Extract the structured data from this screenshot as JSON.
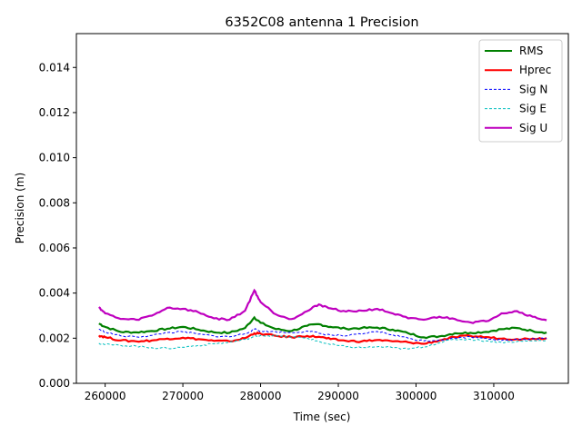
{
  "chart_data": {
    "type": "line",
    "title": "6352C08 antenna 1 Precision",
    "xlabel": "Time (sec)",
    "ylabel": "Precision (m)",
    "xlim": [
      256300,
      319600
    ],
    "ylim": [
      0,
      0.0155
    ],
    "xticks": [
      260000,
      270000,
      280000,
      290000,
      300000,
      310000
    ],
    "xtick_labels": [
      "260000",
      "270000",
      "280000",
      "290000",
      "300000",
      "310000"
    ],
    "yticks": [
      0,
      0.002,
      0.004,
      0.006,
      0.008,
      0.01,
      0.012,
      0.014
    ],
    "ytick_labels": [
      "0.000",
      "0.002",
      "0.004",
      "0.006",
      "0.008",
      "0.010",
      "0.012",
      "0.014"
    ],
    "legend_position": "top-right",
    "grid": false,
    "x": [
      259200,
      260000,
      262000,
      264000,
      266000,
      268000,
      270000,
      272000,
      274000,
      276000,
      278000,
      279200,
      280000,
      282000,
      284000,
      286000,
      287500,
      289000,
      291000,
      293000,
      295000,
      297000,
      299000,
      301000,
      303000,
      305000,
      307000,
      309000,
      311000,
      313000,
      315000,
      316800
    ],
    "series": [
      {
        "name": "RMS",
        "color": "#008000",
        "style": "solid",
        "values": [
          0.00265,
          0.0025,
          0.00228,
          0.00226,
          0.00232,
          0.00242,
          0.0025,
          0.00238,
          0.00226,
          0.00224,
          0.00245,
          0.00292,
          0.00268,
          0.0024,
          0.00232,
          0.00255,
          0.00262,
          0.0025,
          0.00242,
          0.00245,
          0.00247,
          0.00238,
          0.00222,
          0.00204,
          0.00208,
          0.00222,
          0.00224,
          0.00228,
          0.0024,
          0.00245,
          0.00232,
          0.00225
        ]
      },
      {
        "name": "Hprec",
        "color": "#ff0000",
        "style": "solid",
        "values": [
          0.00212,
          0.00205,
          0.0019,
          0.00186,
          0.0019,
          0.00198,
          0.00202,
          0.00196,
          0.00188,
          0.00186,
          0.002,
          0.00222,
          0.0022,
          0.0021,
          0.00204,
          0.0021,
          0.00206,
          0.00196,
          0.00188,
          0.00186,
          0.00192,
          0.00186,
          0.00182,
          0.00175,
          0.0019,
          0.00205,
          0.0021,
          0.00205,
          0.00198,
          0.00196,
          0.00198,
          0.002
        ]
      },
      {
        "name": "Sig N",
        "color": "#0000ff",
        "style": "dashed",
        "values": [
          0.0024,
          0.00228,
          0.0021,
          0.00206,
          0.00212,
          0.00225,
          0.00228,
          0.00218,
          0.0021,
          0.00206,
          0.0022,
          0.0024,
          0.00232,
          0.00228,
          0.00224,
          0.00232,
          0.00222,
          0.00214,
          0.0021,
          0.00218,
          0.0023,
          0.00215,
          0.002,
          0.00188,
          0.00192,
          0.002,
          0.00206,
          0.002,
          0.0019,
          0.00195,
          0.00198,
          0.002
        ]
      },
      {
        "name": "Sig E",
        "color": "#00bfbf",
        "style": "dashed",
        "values": [
          0.00178,
          0.00172,
          0.00168,
          0.00165,
          0.00158,
          0.00155,
          0.0016,
          0.00168,
          0.00175,
          0.00182,
          0.00195,
          0.00206,
          0.00212,
          0.0021,
          0.00205,
          0.002,
          0.00185,
          0.00172,
          0.00162,
          0.00158,
          0.00162,
          0.00158,
          0.00152,
          0.00162,
          0.0018,
          0.00195,
          0.00195,
          0.00188,
          0.00182,
          0.00185,
          0.00188,
          0.0019
        ]
      },
      {
        "name": "Sig U",
        "color": "#bf00bf",
        "style": "solid",
        "values": [
          0.00338,
          0.0031,
          0.00285,
          0.00282,
          0.003,
          0.00335,
          0.0033,
          0.00315,
          0.00288,
          0.00282,
          0.00322,
          0.00412,
          0.0036,
          0.00305,
          0.00285,
          0.0032,
          0.0035,
          0.00332,
          0.00318,
          0.00322,
          0.0033,
          0.0031,
          0.00288,
          0.00282,
          0.00295,
          0.00285,
          0.0027,
          0.00275,
          0.0031,
          0.0032,
          0.00295,
          0.0028
        ]
      }
    ]
  }
}
